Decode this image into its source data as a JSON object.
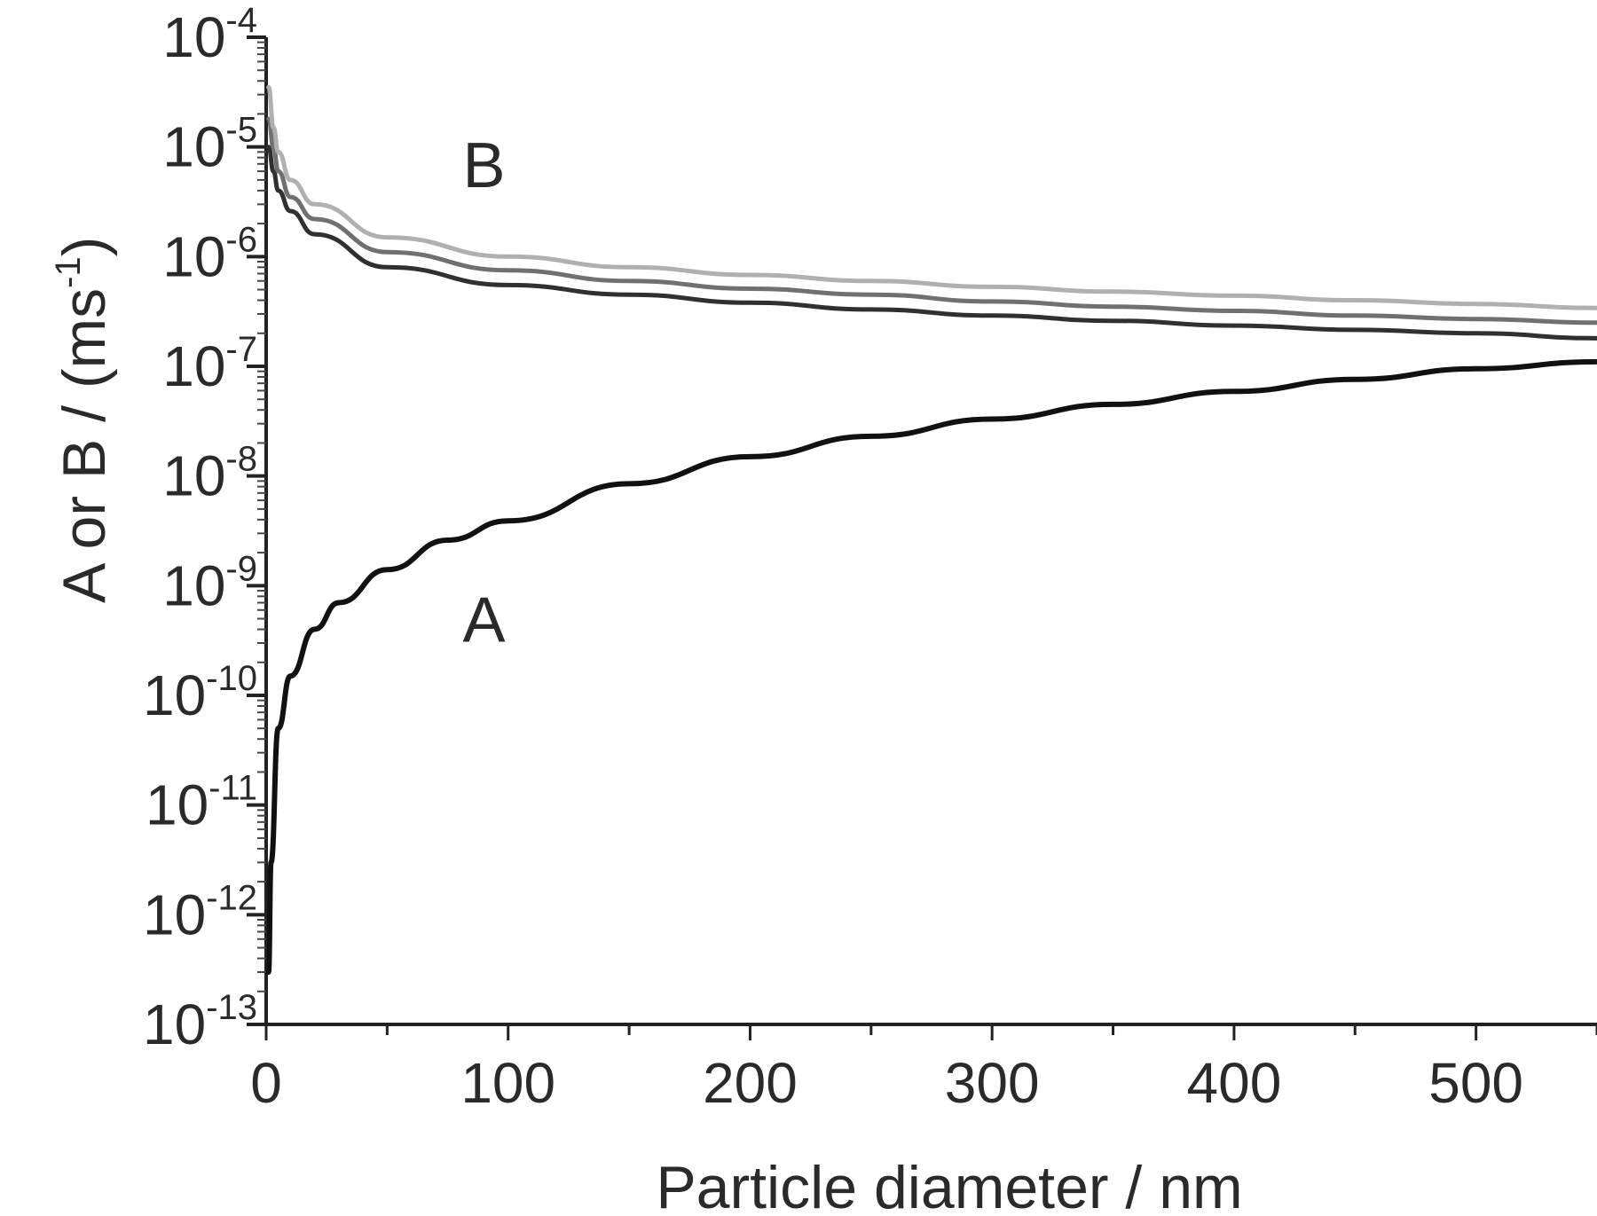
{
  "chart_data": {
    "type": "line",
    "title": "",
    "xlabel": "Particle diameter / nm",
    "ylabel_main": "A or B / (ms",
    "ylabel_exp": "-1",
    "ylabel_close": ")",
    "xlim": [
      0,
      550
    ],
    "ylim": [
      1e-13,
      0.0001
    ],
    "yscale": "log",
    "grid": false,
    "legend": "none",
    "x_ticks": [
      0,
      100,
      200,
      300,
      400,
      500
    ],
    "y_ticks": [
      {
        "base": "10",
        "exp": "-13",
        "value": 1e-13
      },
      {
        "base": "10",
        "exp": "-12",
        "value": 1e-12
      },
      {
        "base": "10",
        "exp": "-11",
        "value": 1e-11
      },
      {
        "base": "10",
        "exp": "-10",
        "value": 1e-10
      },
      {
        "base": "10",
        "exp": "-9",
        "value": 1e-09
      },
      {
        "base": "10",
        "exp": "-8",
        "value": 1e-08
      },
      {
        "base": "10",
        "exp": "-7",
        "value": 1e-07
      },
      {
        "base": "10",
        "exp": "-6",
        "value": 1e-06
      },
      {
        "base": "10",
        "exp": "-5",
        "value": 1e-05
      },
      {
        "base": "10",
        "exp": "-4",
        "value": 0.0001
      }
    ],
    "annotations": [
      {
        "text": "B",
        "x": 90,
        "y": 7e-06
      },
      {
        "text": "A",
        "x": 90,
        "y": 5e-10
      }
    ],
    "series": [
      {
        "color": "#111111",
        "x": [
          1,
          2,
          5,
          10,
          20,
          30,
          50,
          75,
          100,
          150,
          200,
          250,
          300,
          350,
          400,
          450,
          500,
          550
        ],
        "y": [
          3e-13,
          3e-12,
          5e-11,
          1.5e-10,
          4e-10,
          7e-10,
          1.4e-09,
          2.6e-09,
          3.9e-09,
          8.5e-09,
          1.5e-08,
          2.3e-08,
          3.3e-08,
          4.5e-08,
          5.9e-08,
          7.6e-08,
          9.5e-08,
          1.1e-07
        ]
      },
      {
        "color": "#303030",
        "x": [
          1,
          3,
          5,
          10,
          20,
          50,
          100,
          150,
          200,
          250,
          300,
          350,
          400,
          450,
          500,
          550
        ],
        "y": [
          1e-05,
          6e-06,
          4e-06,
          2.6e-06,
          1.6e-06,
          8e-07,
          5.5e-07,
          4.5e-07,
          3.8e-07,
          3.3e-07,
          2.9e-07,
          2.6e-07,
          2.35e-07,
          2.15e-07,
          2e-07,
          1.8e-07
        ]
      },
      {
        "color": "#707070",
        "x": [
          1,
          3,
          5,
          10,
          20,
          50,
          100,
          150,
          200,
          250,
          300,
          350,
          400,
          450,
          500,
          550
        ],
        "y": [
          1.8e-05,
          1e-05,
          6e-06,
          3.5e-06,
          2.2e-06,
          1.1e-06,
          7.5e-07,
          6e-07,
          5.1e-07,
          4.5e-07,
          3.9e-07,
          3.5e-07,
          3.2e-07,
          2.9e-07,
          2.7e-07,
          2.5e-07
        ]
      },
      {
        "color": "#b0b0b0",
        "x": [
          1,
          3,
          5,
          10,
          20,
          50,
          100,
          150,
          200,
          250,
          300,
          350,
          400,
          450,
          500,
          550
        ],
        "y": [
          3.5e-05,
          1.5e-05,
          9e-06,
          5e-06,
          3e-06,
          1.5e-06,
          1e-06,
          8e-07,
          6.8e-07,
          6e-07,
          5.3e-07,
          4.8e-07,
          4.4e-07,
          4e-07,
          3.7e-07,
          3.4e-07
        ]
      }
    ]
  }
}
